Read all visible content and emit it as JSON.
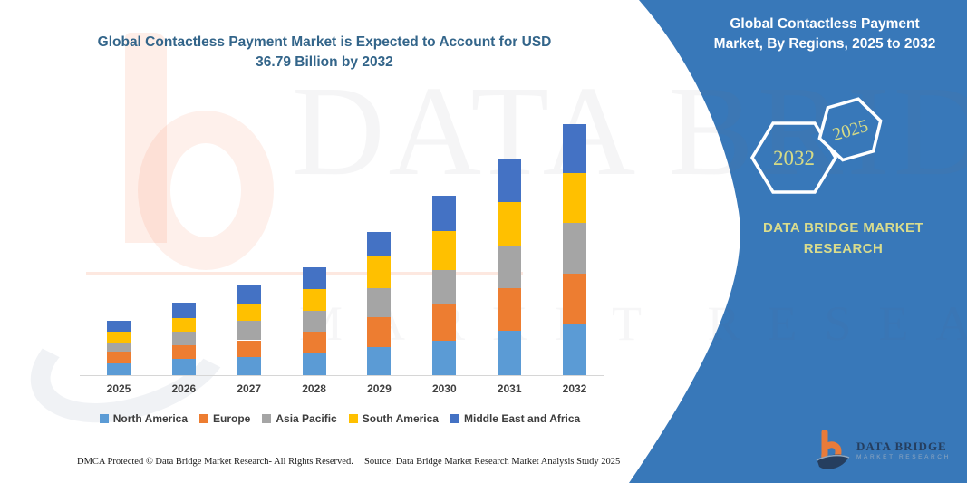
{
  "page": {
    "title_line1": "Global Contactless Payment Market is Expected to Account for USD",
    "title_line2": "36.79 Billion by 2032"
  },
  "side_panel": {
    "heading_line1": "Global Contactless Payment",
    "heading_line2": "Market, By Regions, 2025 to 2032",
    "hexagon_back_label": "2032",
    "hexagon_front_label": "2025",
    "brand_line1": "DATA BRIDGE MARKET",
    "brand_line2": "RESEARCH",
    "panel_color": "#3878B9",
    "accent_text_color": "#D9DC8D"
  },
  "logo": {
    "name": "DATA BRIDGE",
    "tagline": "MARKET RESEARCH"
  },
  "watermark": {
    "line1": "DATA BRIDGE",
    "line2": "MARKET RESEARCH"
  },
  "footer": {
    "dmca": "DMCA Protected © Data Bridge Market Research-  All Rights Reserved.",
    "source": "Source: Data Bridge Market Research  Market Analysis Study 2025"
  },
  "chart_data": {
    "type": "bar",
    "stacked": true,
    "title": "Global Contactless Payment Market is Expected to Account for USD 36.79 Billion by 2032",
    "unit": "USD Billion (estimated from bar heights; 2032 total = 36.79)",
    "categories": [
      "2025",
      "2026",
      "2027",
      "2028",
      "2029",
      "2030",
      "2031",
      "2032"
    ],
    "series": [
      {
        "name": "North America",
        "color": "#5B9BD5",
        "values": [
          1.7,
          2.4,
          2.6,
          3.2,
          4.1,
          5.0,
          6.5,
          7.4
        ]
      },
      {
        "name": "Europe",
        "color": "#ED7D31",
        "values": [
          1.7,
          2.0,
          2.5,
          3.2,
          4.4,
          5.4,
          6.2,
          7.5
        ]
      },
      {
        "name": "Asia Pacific",
        "color": "#A5A5A5",
        "values": [
          1.3,
          2.0,
          2.8,
          3.0,
          4.2,
          5.0,
          6.2,
          7.4
        ]
      },
      {
        "name": "South America",
        "color": "#FFC000",
        "values": [
          1.6,
          2.0,
          2.5,
          3.2,
          4.6,
          5.6,
          6.4,
          7.3
        ]
      },
      {
        "name": "Middle East and Africa",
        "color": "#4472C4",
        "values": [
          1.6,
          2.2,
          2.8,
          3.2,
          3.6,
          5.2,
          6.2,
          7.1
        ]
      }
    ],
    "totals_by_year": [
      7.9,
      10.6,
      13.2,
      15.8,
      20.9,
      26.2,
      31.5,
      36.7
    ],
    "xlabel": "",
    "ylabel": "",
    "y_axis_visible": false,
    "grid": false,
    "legend_position": "bottom"
  }
}
